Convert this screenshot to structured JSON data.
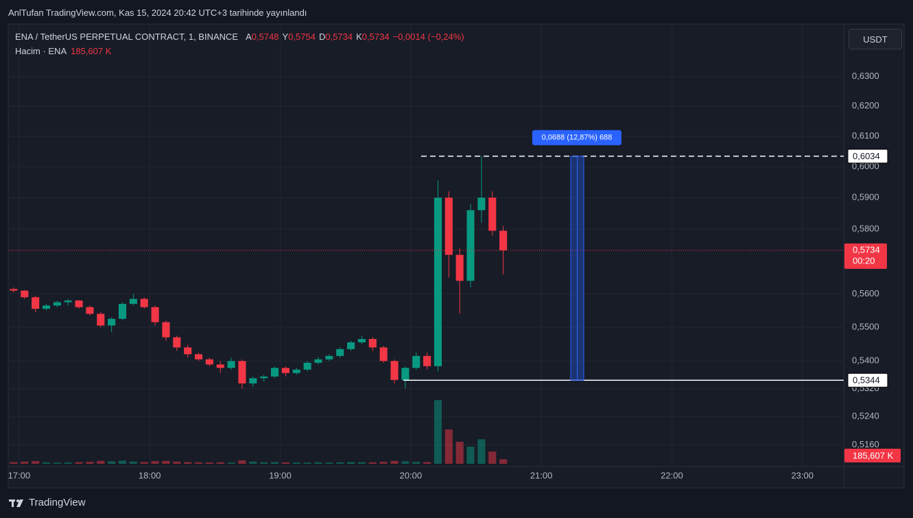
{
  "header": {
    "title": "AnlTufan TradingView.com, Kas 15, 2024 20:42 UTC+3 tarihinde yayınlandı",
    "brand": "TradingView"
  },
  "legend": {
    "symbol": "ENA / TetherUS PERPETUAL CONTRACT, 1, BINANCE",
    "open_label": "A",
    "open": "0,5748",
    "high_label": "Y",
    "high": "0,5754",
    "low_label": "D",
    "low": "0,5734",
    "close_label": "K",
    "close": "0,5734",
    "change": "−0,0014 (−0,24%)",
    "volume_label": "Hacim · ENA",
    "volume": "185,607 K"
  },
  "currency": "USDT",
  "chart_data": {
    "type": "candlestick",
    "log_scale": true,
    "grid": true,
    "up_color": "#089981",
    "down_color": "#f23645",
    "x": [
      "16:55",
      "17:00",
      "17:05",
      "17:10",
      "17:15",
      "17:20",
      "17:25",
      "17:30",
      "17:35",
      "17:40",
      "17:45",
      "17:50",
      "17:55",
      "18:00",
      "18:05",
      "18:10",
      "18:15",
      "18:20",
      "18:25",
      "18:30",
      "18:35",
      "18:40",
      "18:45",
      "18:50",
      "18:55",
      "19:00",
      "19:05",
      "19:10",
      "19:15",
      "19:20",
      "19:25",
      "19:30",
      "19:35",
      "19:40",
      "19:45",
      "19:50",
      "19:55",
      "20:00",
      "20:05",
      "20:10",
      "20:15",
      "20:20",
      "20:25",
      "20:30",
      "20:35",
      "20:40"
    ],
    "open": [
      0.5615,
      0.561,
      0.559,
      0.5555,
      0.5565,
      0.5575,
      0.558,
      0.556,
      0.554,
      0.5505,
      0.5525,
      0.557,
      0.5585,
      0.556,
      0.5515,
      0.547,
      0.544,
      0.542,
      0.5405,
      0.539,
      0.538,
      0.54,
      0.5335,
      0.535,
      0.5355,
      0.538,
      0.5365,
      0.5375,
      0.5395,
      0.5405,
      0.5415,
      0.5435,
      0.5455,
      0.5465,
      0.544,
      0.54,
      0.5345,
      0.538,
      0.5415,
      0.5385,
      0.59,
      0.572,
      0.564,
      0.586,
      0.59,
      0.5795
    ],
    "high": [
      0.562,
      0.5612,
      0.5595,
      0.557,
      0.558,
      0.5585,
      0.5582,
      0.5565,
      0.5545,
      0.553,
      0.5575,
      0.56,
      0.559,
      0.5565,
      0.552,
      0.5475,
      0.5448,
      0.5425,
      0.541,
      0.54,
      0.541,
      0.5405,
      0.5355,
      0.536,
      0.5385,
      0.5385,
      0.538,
      0.54,
      0.5412,
      0.542,
      0.544,
      0.546,
      0.5475,
      0.547,
      0.5445,
      0.5405,
      0.5385,
      0.5425,
      0.5425,
      0.5955,
      0.592,
      0.574,
      0.588,
      0.6034,
      0.592,
      0.581
    ],
    "low": [
      0.5605,
      0.5585,
      0.5545,
      0.555,
      0.556,
      0.5565,
      0.5555,
      0.5535,
      0.55,
      0.5485,
      0.552,
      0.5565,
      0.5555,
      0.5505,
      0.546,
      0.543,
      0.541,
      0.54,
      0.5385,
      0.5365,
      0.5375,
      0.532,
      0.5325,
      0.534,
      0.535,
      0.5355,
      0.536,
      0.537,
      0.539,
      0.54,
      0.541,
      0.543,
      0.545,
      0.543,
      0.5395,
      0.5335,
      0.532,
      0.5375,
      0.5375,
      0.537,
      0.565,
      0.554,
      0.562,
      0.582,
      0.578,
      0.566
    ],
    "close": [
      0.561,
      0.559,
      0.5555,
      0.5565,
      0.5575,
      0.558,
      0.556,
      0.554,
      0.5505,
      0.5525,
      0.557,
      0.5585,
      0.556,
      0.5515,
      0.547,
      0.544,
      0.542,
      0.5405,
      0.539,
      0.538,
      0.54,
      0.5335,
      0.535,
      0.5355,
      0.538,
      0.5365,
      0.5375,
      0.5395,
      0.5405,
      0.5415,
      0.5435,
      0.5455,
      0.5465,
      0.544,
      0.54,
      0.5345,
      0.538,
      0.5415,
      0.5385,
      0.59,
      0.572,
      0.564,
      0.586,
      0.59,
      0.5795,
      0.5734
    ],
    "volume": [
      70,
      90,
      110,
      60,
      50,
      55,
      70,
      80,
      120,
      100,
      130,
      90,
      70,
      110,
      120,
      90,
      70,
      60,
      55,
      60,
      50,
      140,
      90,
      60,
      70,
      60,
      55,
      50,
      60,
      55,
      60,
      70,
      65,
      60,
      80,
      120,
      100,
      80,
      70,
      2600,
      1400,
      900,
      700,
      1000,
      500,
      185.607
    ],
    "volume_lim": [
      0,
      2800
    ],
    "xlim": [
      "16:55",
      "23:19"
    ],
    "xticks": [
      "17:00",
      "18:00",
      "19:00",
      "20:00",
      "21:00",
      "22:00",
      "23:00"
    ],
    "ylim": [
      0.51,
      0.647
    ],
    "yticks": [
      {
        "value": 0.63,
        "label": "0,6300"
      },
      {
        "value": 0.62,
        "label": "0,6200"
      },
      {
        "value": 0.61,
        "label": "0,6100"
      },
      {
        "value": 0.6,
        "label": "0,6000"
      },
      {
        "value": 0.59,
        "label": "0,5900"
      },
      {
        "value": 0.58,
        "label": "0,5800"
      },
      {
        "value": 0.56,
        "label": "0,5600"
      },
      {
        "value": 0.55,
        "label": "0,5500"
      },
      {
        "value": 0.54,
        "label": "0,5400"
      },
      {
        "value": 0.532,
        "label": "0,5320"
      },
      {
        "value": 0.524,
        "label": "0,5240"
      },
      {
        "value": 0.516,
        "label": "0,5160"
      }
    ],
    "last_price": {
      "value": 0.5734,
      "label": "0,5734",
      "countdown": "00:20"
    },
    "last_volume_label": "185,607 K",
    "level_high": {
      "value": 0.6034,
      "label": "0,6034"
    },
    "level_low": {
      "value": 0.5344,
      "label": "0,5344"
    },
    "measure_label": "0,0688 (12,87%) 688"
  }
}
